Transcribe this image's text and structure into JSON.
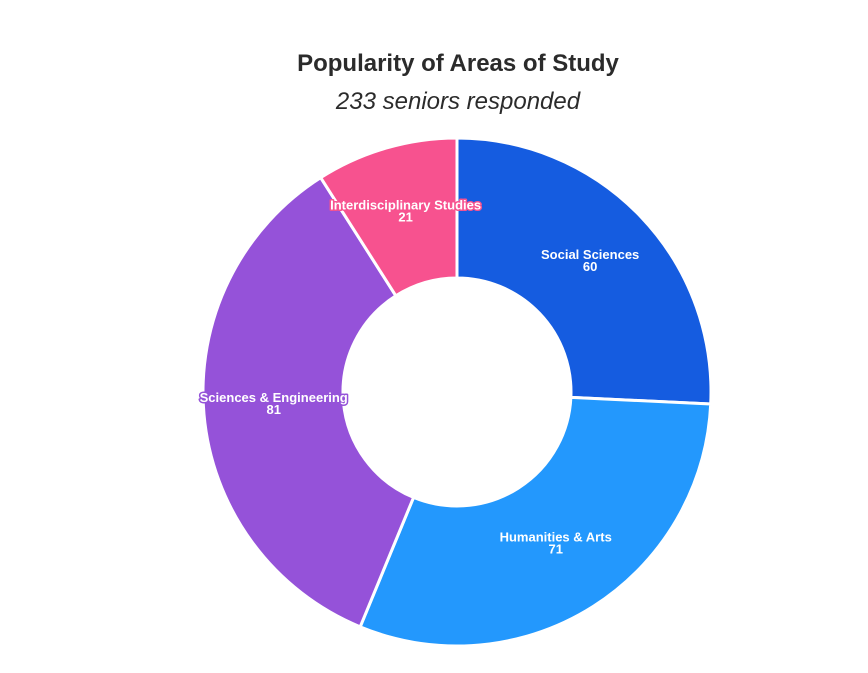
{
  "chart_data": {
    "type": "pie",
    "title": "Popularity of Areas of Study",
    "subtitle": "233 seniors responded",
    "donut": true,
    "slices": [
      {
        "label": "Social Sciences",
        "value": 60,
        "color": "#155ce0"
      },
      {
        "label": "Humanities & Arts",
        "value": 71,
        "color": "#2398fd"
      },
      {
        "label": "Sciences & Engineering",
        "value": 81,
        "color": "#9552d9"
      },
      {
        "label": "Interdisciplinary Studies",
        "value": 21,
        "color": "#f7528f"
      }
    ],
    "start_angle_deg": 0,
    "direction": "clockwise",
    "legend": "none"
  }
}
